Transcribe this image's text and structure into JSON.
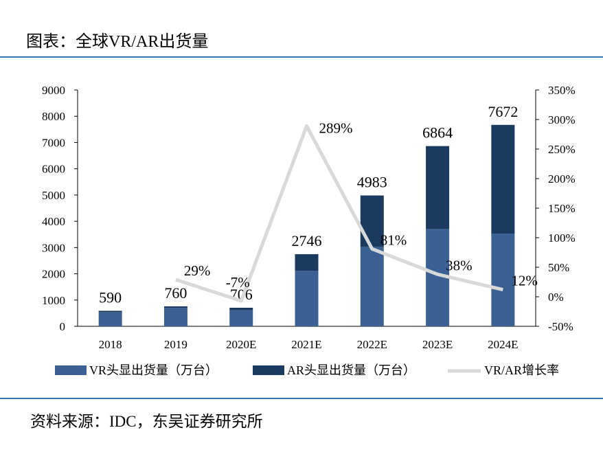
{
  "header": {
    "title": "图表：全球VR/AR出货量"
  },
  "footer": {
    "source": "资料来源：IDC，东吴证券研究所"
  },
  "colors": {
    "vr": "#3a6094",
    "ar": "#1b3a5f",
    "growth": "#d9d9d9",
    "rule": "#2e75b6"
  },
  "chart_data": {
    "type": "bar",
    "stacked": true,
    "categories": [
      "2018",
      "2019",
      "2020E",
      "2021E",
      "2022E",
      "2023E",
      "2024E"
    ],
    "series": [
      {
        "name": "VR头显出货量（万台）",
        "type": "bar",
        "axis": "left",
        "values": [
          540,
          700,
          610,
          2110,
          3025,
          3705,
          3530
        ]
      },
      {
        "name": "AR头显出货量（万台）",
        "type": "bar",
        "axis": "left",
        "values": [
          50,
          60,
          96,
          636,
          1958,
          3159,
          4142
        ]
      },
      {
        "name": "VR/AR增长率",
        "type": "line",
        "axis": "right",
        "values": [
          null,
          29,
          -7,
          289,
          81,
          38,
          12
        ],
        "labels": [
          "",
          "29%",
          "-7%",
          "289%",
          "81%",
          "38%",
          "12%"
        ]
      }
    ],
    "totals": [
      590,
      760,
      706,
      2746,
      4983,
      6864,
      7672
    ],
    "ylim": [
      0,
      9000
    ],
    "yticks": [
      "0",
      "1000",
      "2000",
      "3000",
      "4000",
      "5000",
      "6000",
      "7000",
      "8000",
      "9000"
    ],
    "y2lim": [
      -50,
      350
    ],
    "y2ticks": [
      "-50%",
      "0%",
      "50%",
      "100%",
      "150%",
      "200%",
      "250%",
      "300%",
      "350%"
    ],
    "grid": false,
    "legend": "bottom"
  }
}
